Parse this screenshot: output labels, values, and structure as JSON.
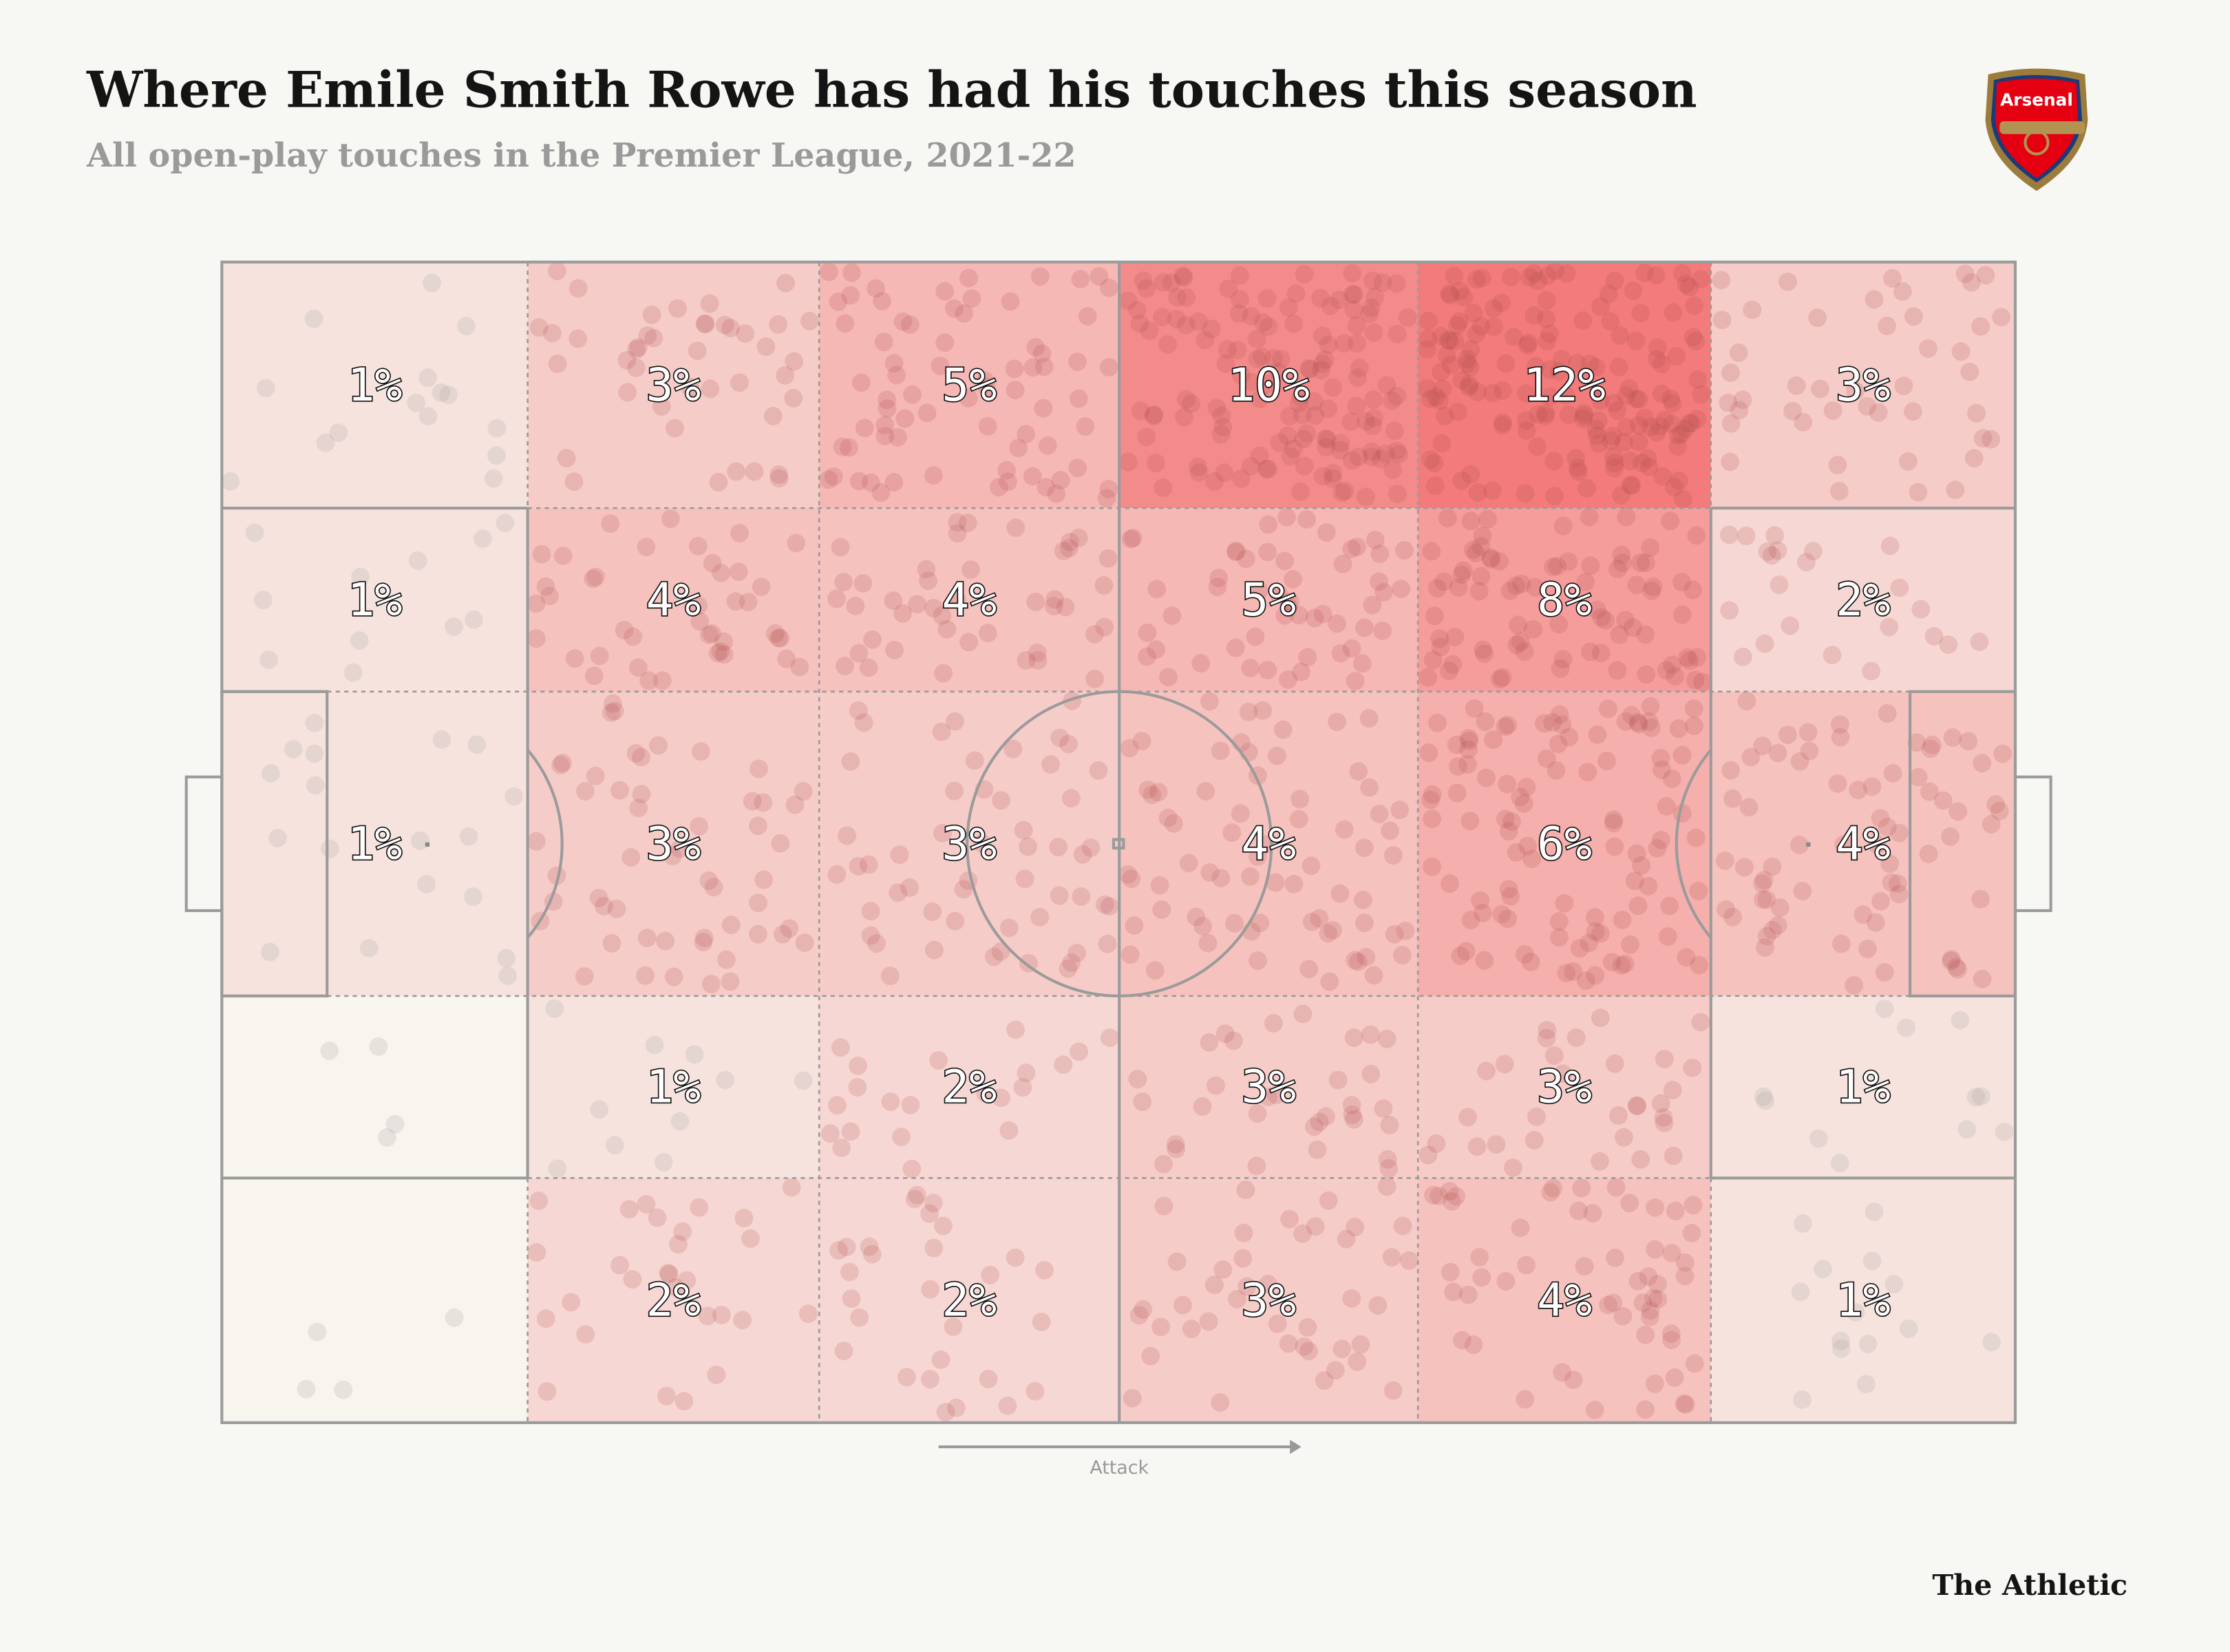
{
  "header": {
    "title": "Where Emile Smith Rowe has had his touches this season",
    "subtitle": "All open-play touches in the Premier League, 2021-22"
  },
  "logo": {
    "club": "Arsenal"
  },
  "footer": {
    "brand": "The Athletic"
  },
  "chart_data": {
    "type": "heatmap",
    "title": "Where Emile Smith Rowe has had his touches this season",
    "subtitle": "All open-play touches in the Premier League, 2021-22",
    "direction_label": "Attack",
    "unit": "% of touches",
    "zones_columns": 6,
    "zones_rows": 5,
    "values": [
      [
        1,
        3,
        5,
        10,
        12,
        3
      ],
      [
        1,
        4,
        4,
        5,
        8,
        2
      ],
      [
        1,
        3,
        3,
        4,
        6,
        4
      ],
      [
        null,
        1,
        2,
        3,
        3,
        1
      ],
      [
        null,
        2,
        2,
        3,
        4,
        1
      ]
    ],
    "labels": [
      [
        "1%",
        "3%",
        "5%",
        "10%",
        "12%",
        "3%"
      ],
      [
        "1%",
        "4%",
        "4%",
        "5%",
        "8%",
        "2%"
      ],
      [
        "1%",
        "3%",
        "3%",
        "4%",
        "6%",
        "4%"
      ],
      [
        "",
        "1%",
        "2%",
        "3%",
        "3%",
        "1%"
      ],
      [
        "",
        "2%",
        "2%",
        "3%",
        "4%",
        "1%"
      ]
    ],
    "color_scale": {
      "low": "#f8f4ee",
      "high": "#f37b7b",
      "min": 0,
      "max": 12
    }
  }
}
